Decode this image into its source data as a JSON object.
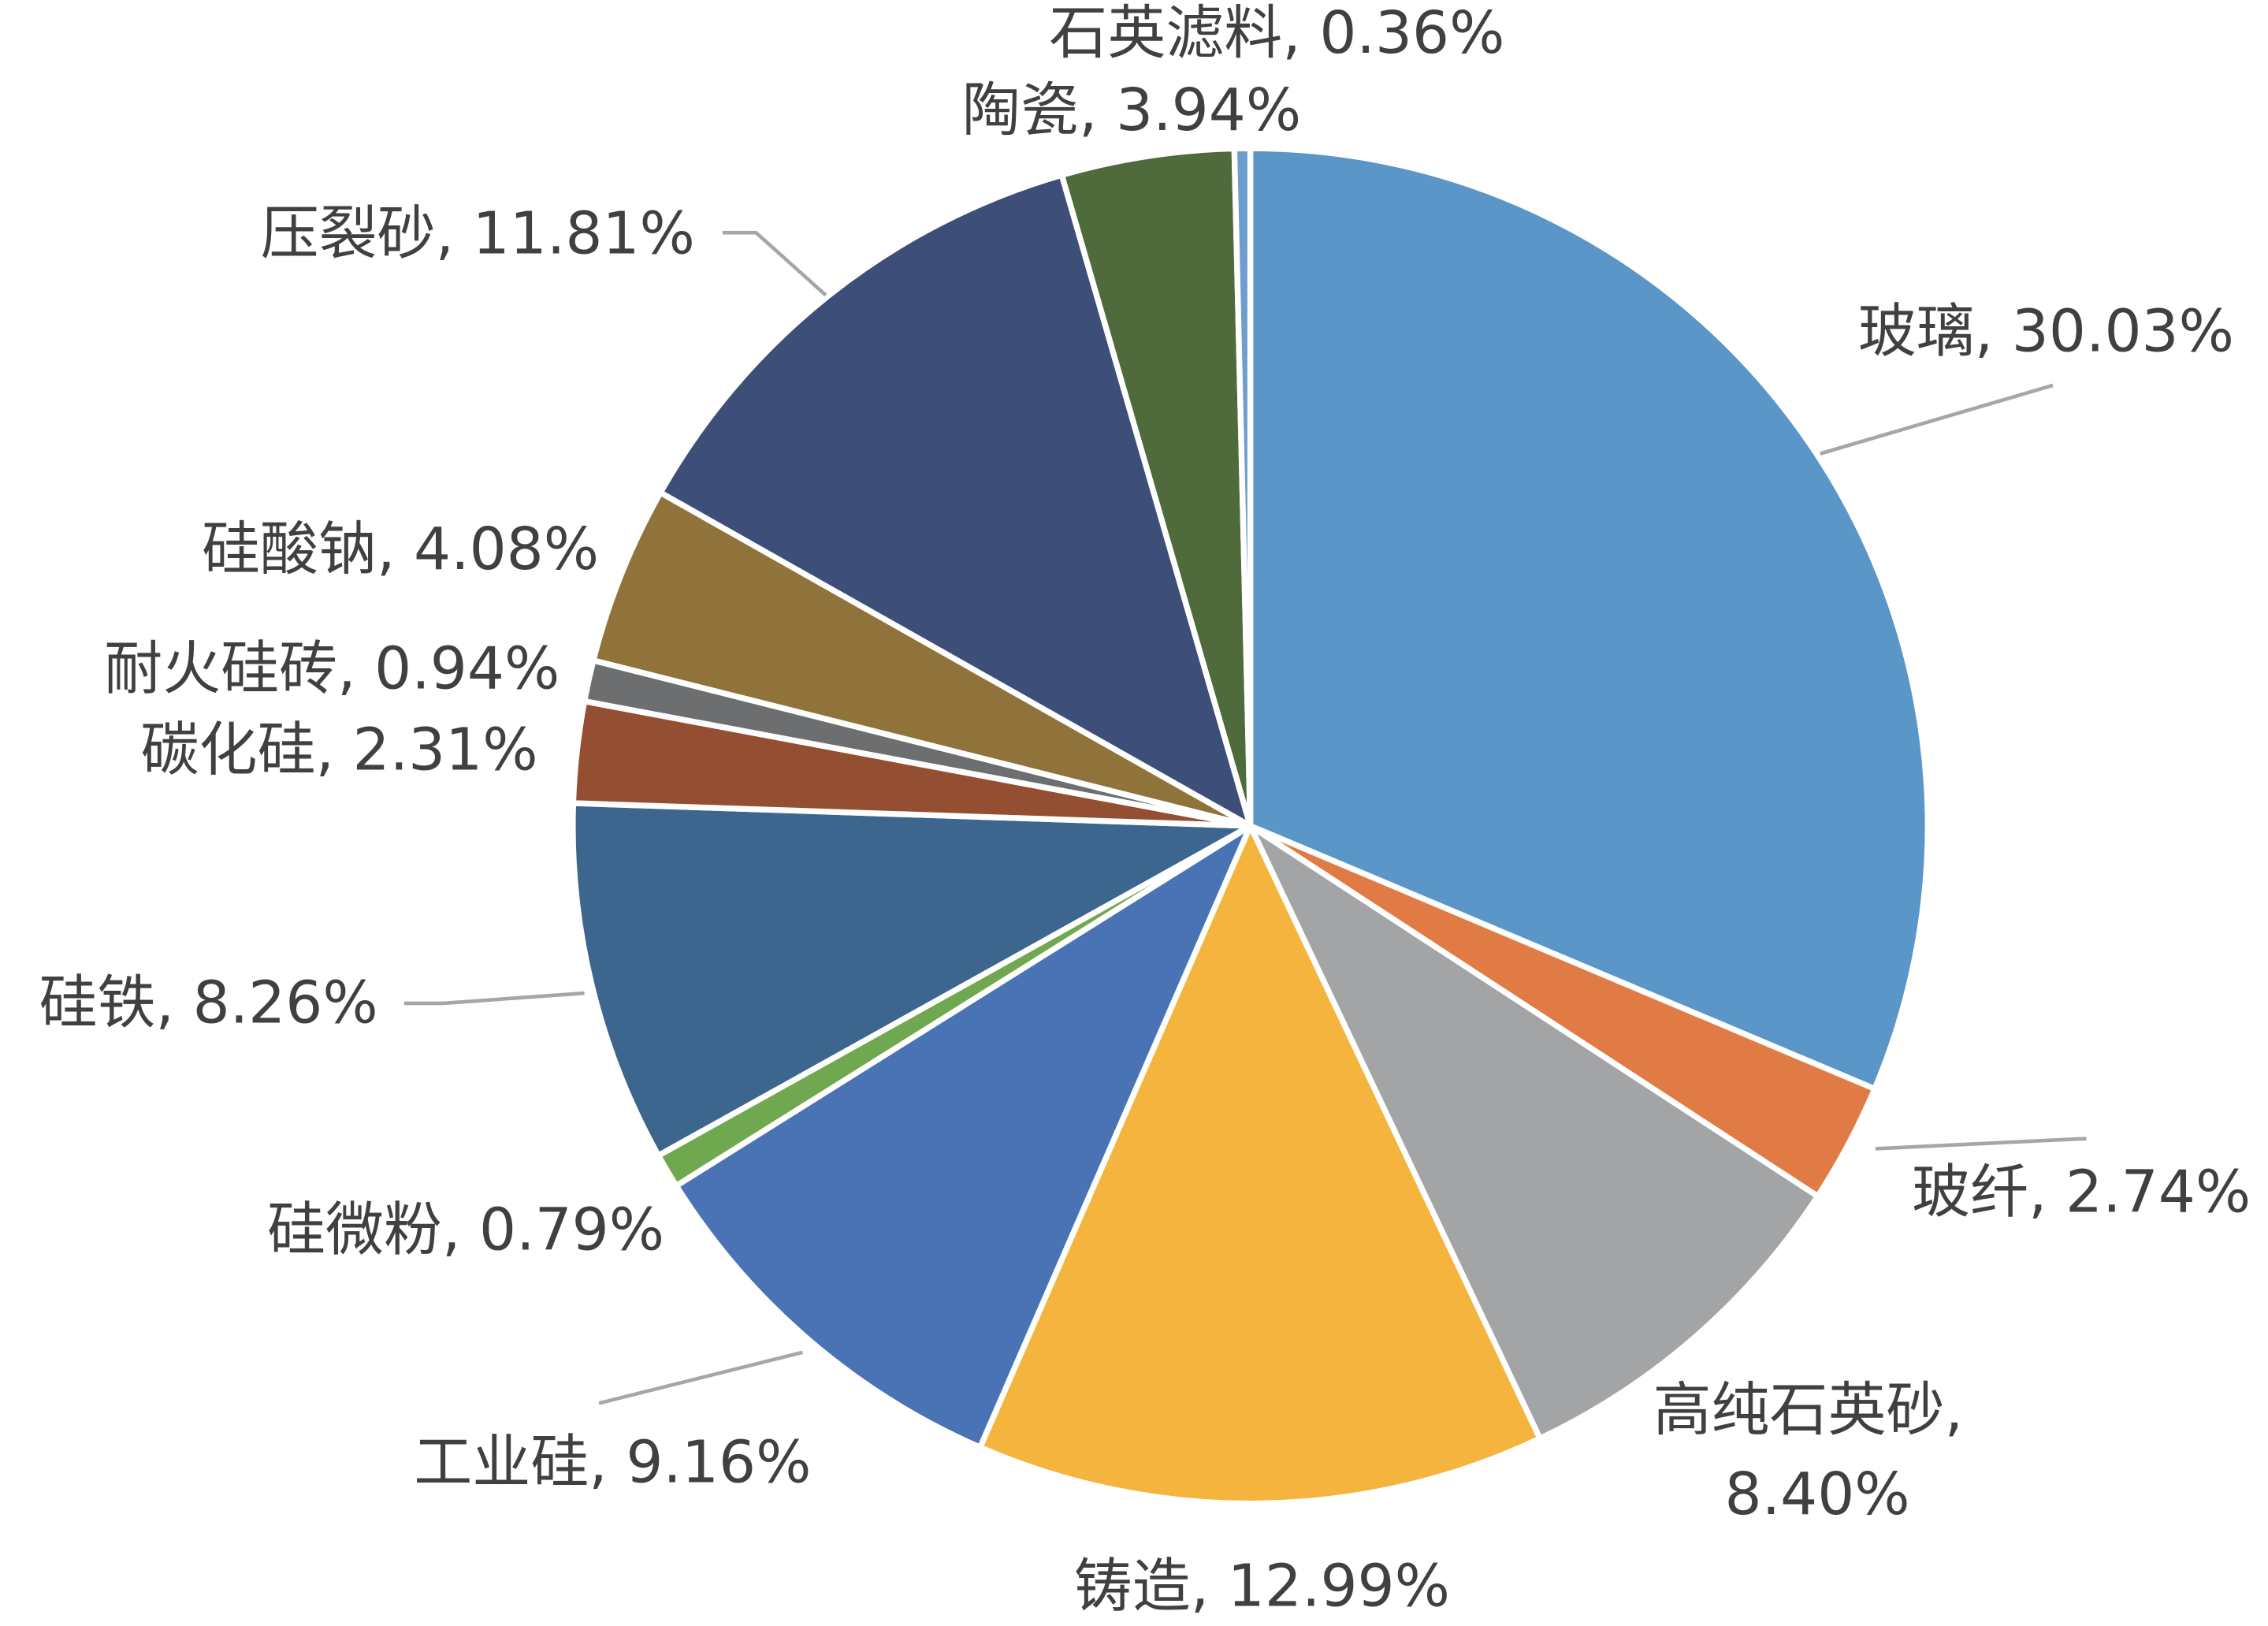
{
  "chart_data": {
    "type": "pie",
    "categories": [
      "玻璃",
      "玻纤",
      "高纯石英砂",
      "铸造",
      "工业硅",
      "硅微粉",
      "硅铁",
      "碳化硅",
      "耐火硅砖",
      "硅酸钠",
      "压裂砂",
      "陶瓷",
      "石英滤料"
    ],
    "values": [
      30.03,
      2.74,
      8.4,
      12.99,
      9.16,
      0.79,
      8.26,
      2.31,
      0.94,
      4.08,
      11.81,
      3.94,
      0.36
    ],
    "value_labels": [
      "30.03%",
      "2.74%",
      "8.40%",
      "12.99%",
      "9.16%",
      "0.79%",
      "8.26%",
      "2.31%",
      "0.94%",
      "4.08%",
      "11.81%",
      "3.94%",
      "0.36%"
    ],
    "label_separator": ", ",
    "colors": [
      "#5b96c8",
      "#e07b45",
      "#a3a4a6",
      "#f4b43d",
      "#4a73b6",
      "#6fa84f",
      "#3d668e",
      "#944f33",
      "#6d6e70",
      "#8f733a",
      "#3d4e78",
      "#4f6a3b",
      "#6e9ed0"
    ]
  }
}
